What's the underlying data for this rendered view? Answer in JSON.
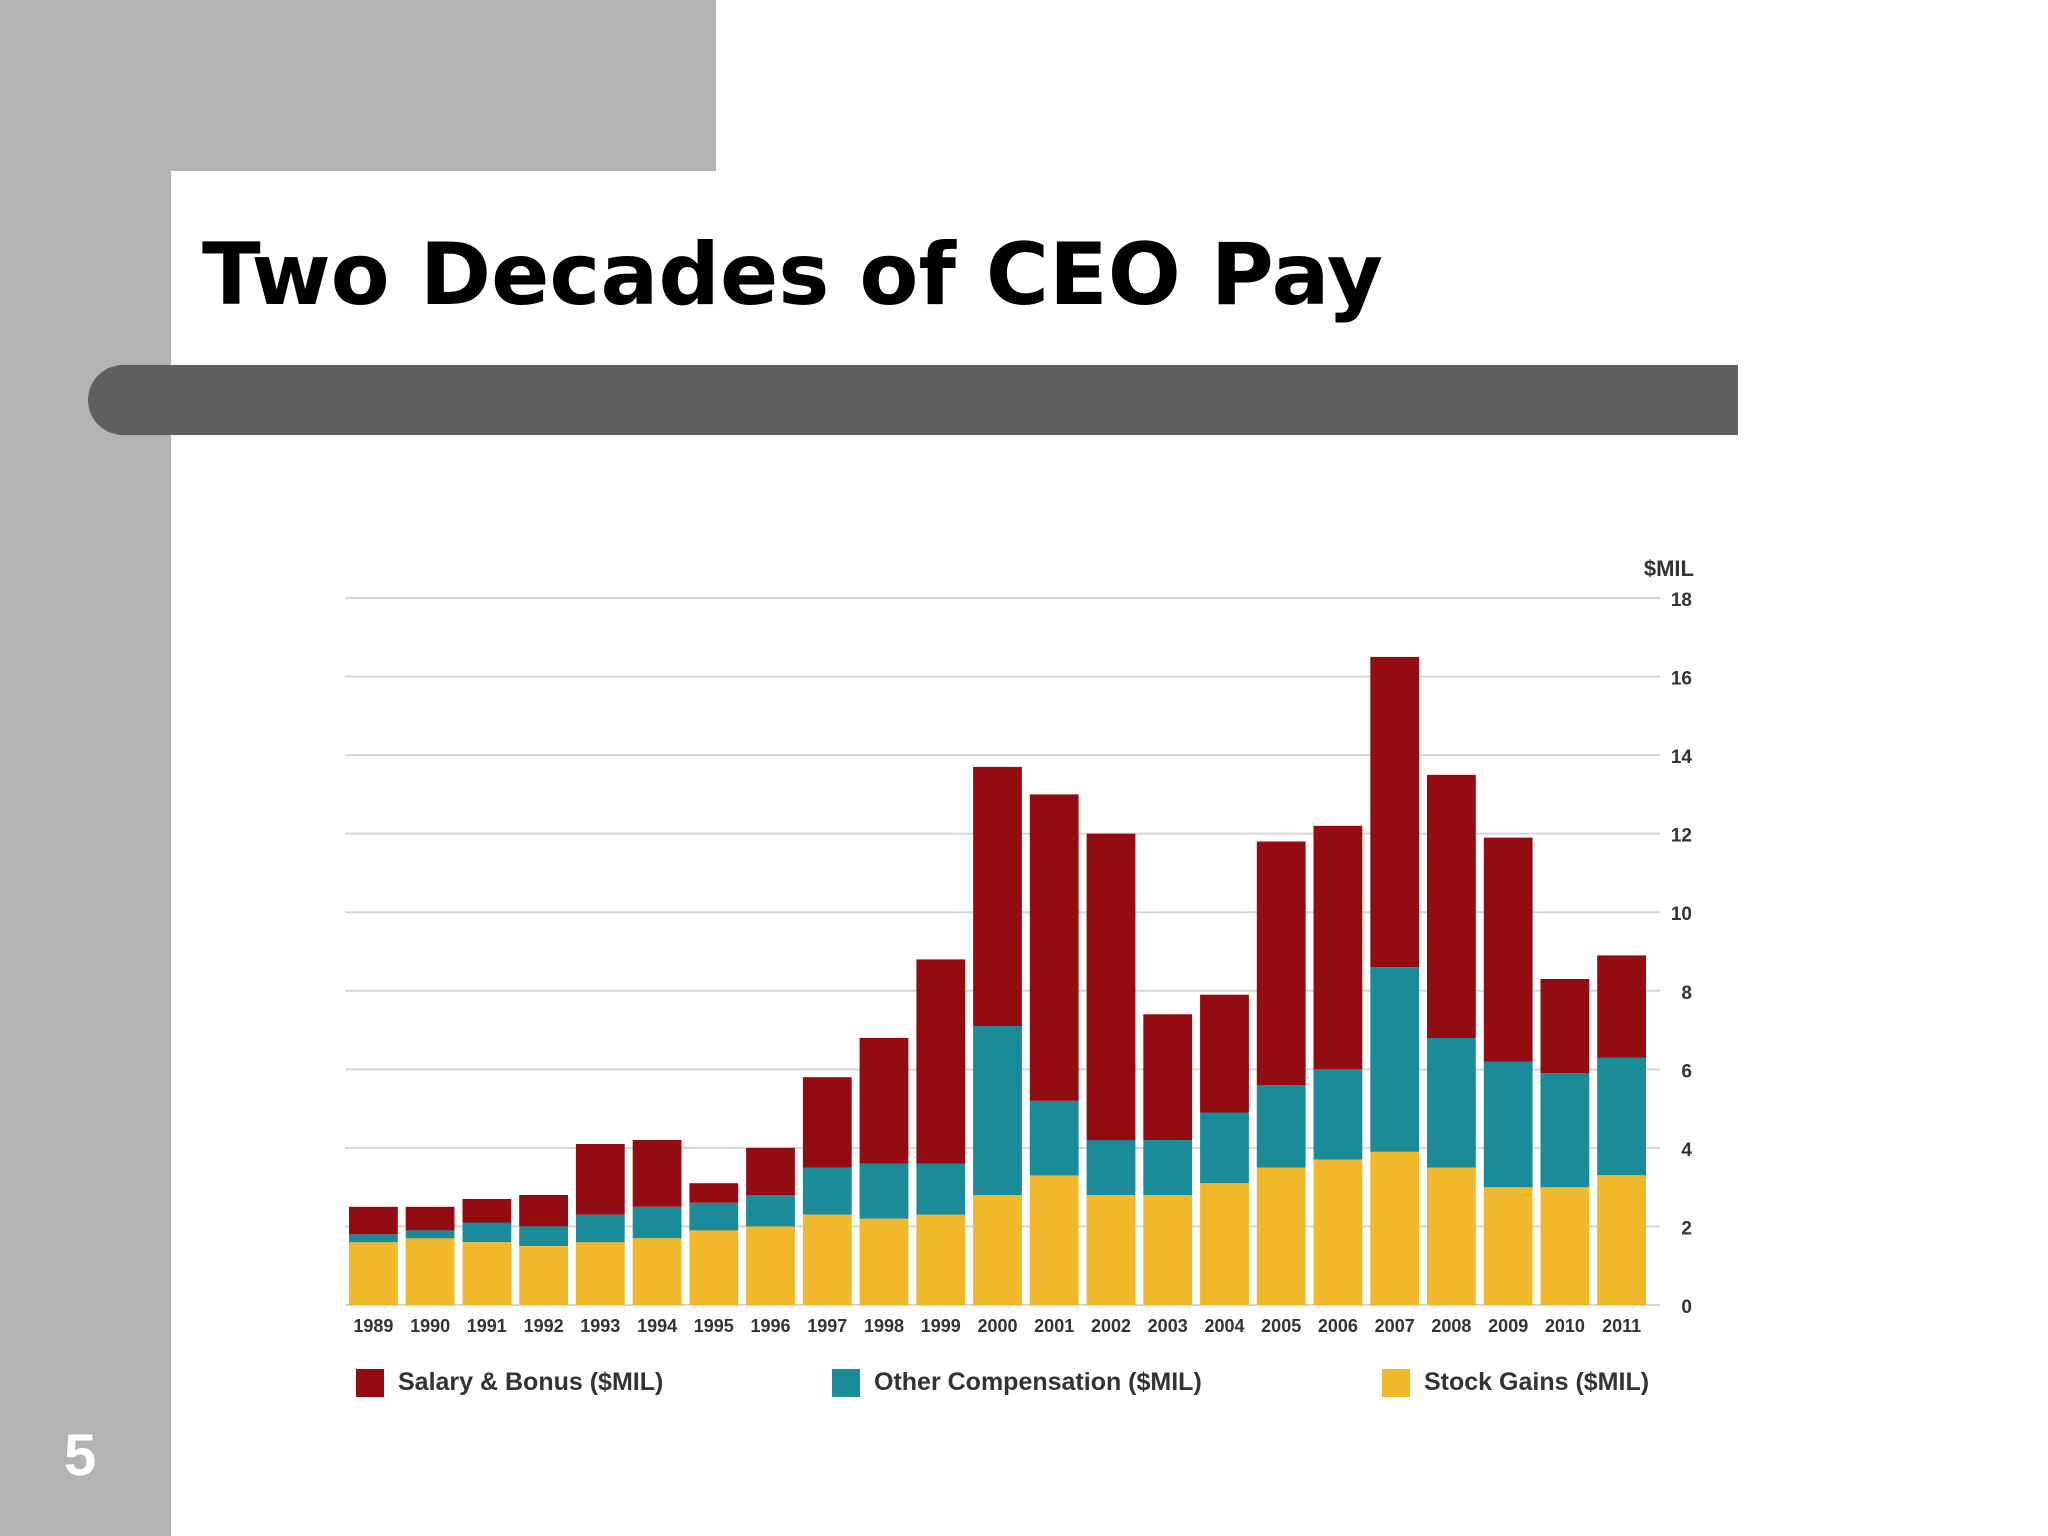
{
  "slide": {
    "title": "Two Decades of CEO Pay",
    "number": "5"
  },
  "colors": {
    "salary": "#930c12",
    "other": "#1a8b99",
    "stock": "#f1b82c",
    "grid": "#d6d6d6"
  },
  "chart_data": {
    "type": "bar",
    "stacked": true,
    "unit_label": "$MIL",
    "categories": [
      "1989",
      "1990",
      "1991",
      "1992",
      "1993",
      "1994",
      "1995",
      "1996",
      "1997",
      "1998",
      "1999",
      "2000",
      "2001",
      "2002",
      "2003",
      "2004",
      "2005",
      "2006",
      "2007",
      "2008",
      "2009",
      "2010",
      "2011"
    ],
    "series": [
      {
        "name": "Stock Gains ($MIL)",
        "color_key": "stock",
        "values": [
          1.6,
          1.7,
          1.6,
          1.5,
          1.6,
          1.7,
          1.9,
          2.0,
          2.3,
          2.2,
          2.3,
          2.8,
          3.3,
          2.8,
          2.8,
          3.1,
          3.5,
          3.7,
          3.9,
          3.5,
          3.0,
          3.0,
          3.3
        ]
      },
      {
        "name": "Other Compensation ($MIL)",
        "color_key": "other",
        "values": [
          0.2,
          0.2,
          0.5,
          0.5,
          0.7,
          0.8,
          0.7,
          0.8,
          1.2,
          1.4,
          1.3,
          4.3,
          1.9,
          1.4,
          1.4,
          1.8,
          2.1,
          2.3,
          4.7,
          3.3,
          3.2,
          2.9,
          3.0
        ]
      },
      {
        "name": "Salary & Bonus ($MIL)",
        "color_key": "salary",
        "values": [
          0.7,
          0.6,
          0.6,
          0.8,
          1.8,
          1.7,
          0.5,
          1.2,
          2.3,
          3.2,
          5.2,
          6.6,
          7.8,
          7.8,
          3.2,
          3.0,
          6.2,
          6.2,
          7.9,
          6.7,
          5.7,
          2.4,
          2.6
        ]
      }
    ],
    "ylim": [
      0,
      18
    ],
    "yticks": [
      0,
      2,
      4,
      6,
      8,
      10,
      12,
      14,
      16,
      18
    ],
    "y_axis_position": "right",
    "grid": true,
    "legend": {
      "position": "bottom",
      "items": [
        {
          "label": "Salary & Bonus ($MIL)",
          "color_key": "salary"
        },
        {
          "label": "Other Compensation ($MIL)",
          "color_key": "other"
        },
        {
          "label": "Stock Gains ($MIL)",
          "color_key": "stock"
        }
      ]
    }
  }
}
